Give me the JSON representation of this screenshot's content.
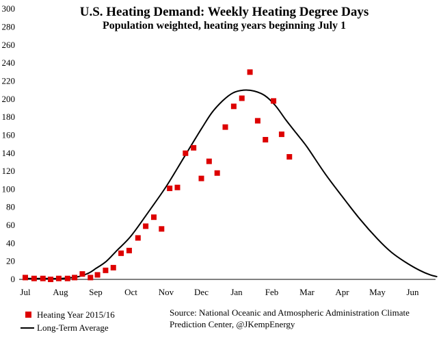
{
  "chart_data": {
    "type": "scatter",
    "title": "U.S. Heating Demand: Weekly Heating Degree Days",
    "subtitle": "Population weighted, heating years beginning July 1",
    "ylim": [
      0,
      300
    ],
    "yticks": [
      0,
      20,
      40,
      60,
      80,
      100,
      120,
      140,
      160,
      180,
      200,
      220,
      240,
      260,
      280,
      300
    ],
    "xlim": [
      0,
      12
    ],
    "xticks": [
      {
        "label": "Jul",
        "x": 0
      },
      {
        "label": "Aug",
        "x": 1
      },
      {
        "label": "Sep",
        "x": 2
      },
      {
        "label": "Oct",
        "x": 3
      },
      {
        "label": "Nov",
        "x": 4
      },
      {
        "label": "Dec",
        "x": 5
      },
      {
        "label": "Jan",
        "x": 6
      },
      {
        "label": "Feb",
        "x": 7
      },
      {
        "label": "Mar",
        "x": 8
      },
      {
        "label": "Apr",
        "x": 9
      },
      {
        "label": "May",
        "x": 10
      },
      {
        "label": "Jun",
        "x": 11
      }
    ],
    "series": [
      {
        "name": "Heating Year 2015/16",
        "kind": "markers",
        "color": "#dd0000",
        "points": [
          [
            0.0,
            2
          ],
          [
            0.25,
            1
          ],
          [
            0.5,
            1
          ],
          [
            0.72,
            0
          ],
          [
            0.95,
            1
          ],
          [
            1.2,
            1
          ],
          [
            1.4,
            2
          ],
          [
            1.62,
            6
          ],
          [
            1.85,
            2
          ],
          [
            2.05,
            5
          ],
          [
            2.28,
            10
          ],
          [
            2.5,
            13
          ],
          [
            2.72,
            29
          ],
          [
            2.95,
            32
          ],
          [
            3.2,
            46
          ],
          [
            3.42,
            59
          ],
          [
            3.65,
            69
          ],
          [
            3.87,
            56
          ],
          [
            4.1,
            101
          ],
          [
            4.32,
            102
          ],
          [
            4.55,
            140
          ],
          [
            4.78,
            146
          ],
          [
            5.0,
            112
          ],
          [
            5.22,
            131
          ],
          [
            5.45,
            118
          ],
          [
            5.68,
            169
          ],
          [
            5.92,
            192
          ],
          [
            6.15,
            201
          ],
          [
            6.38,
            230
          ],
          [
            6.6,
            176
          ],
          [
            6.82,
            155
          ],
          [
            7.05,
            198
          ],
          [
            7.28,
            161
          ],
          [
            7.5,
            136
          ]
        ]
      },
      {
        "name": "Long-Term Average",
        "kind": "line",
        "color": "#000000",
        "points": [
          [
            0.0,
            1
          ],
          [
            0.5,
            1
          ],
          [
            1.0,
            1
          ],
          [
            1.5,
            3
          ],
          [
            1.8,
            7
          ],
          [
            2.0,
            12
          ],
          [
            2.3,
            20
          ],
          [
            2.6,
            32
          ],
          [
            3.0,
            48
          ],
          [
            3.5,
            75
          ],
          [
            4.0,
            103
          ],
          [
            4.5,
            135
          ],
          [
            5.0,
            167
          ],
          [
            5.3,
            185
          ],
          [
            5.6,
            198
          ],
          [
            5.9,
            207
          ],
          [
            6.2,
            210
          ],
          [
            6.5,
            209
          ],
          [
            6.8,
            204
          ],
          [
            7.1,
            193
          ],
          [
            7.4,
            177
          ],
          [
            7.7,
            162
          ],
          [
            8.0,
            147
          ],
          [
            8.5,
            118
          ],
          [
            9.0,
            92
          ],
          [
            9.5,
            67
          ],
          [
            10.0,
            45
          ],
          [
            10.4,
            30
          ],
          [
            10.8,
            19
          ],
          [
            11.2,
            10
          ],
          [
            11.5,
            5
          ],
          [
            11.7,
            3
          ]
        ]
      }
    ],
    "grid": false,
    "legend_position": "bottom-left",
    "source_lines": [
      "Source: National Oceanic and Atmospheric Administration Climate",
      "Prediction Center, @JKempEnergy"
    ]
  }
}
